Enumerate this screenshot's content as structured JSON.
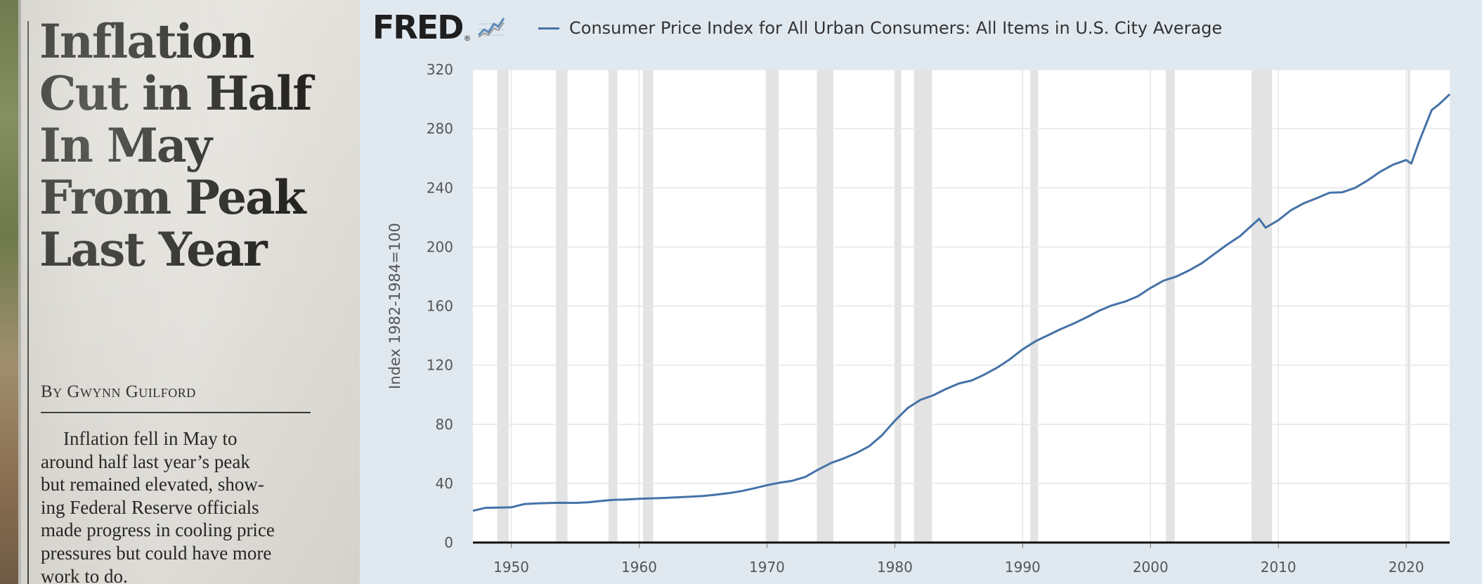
{
  "article": {
    "headline_lines": [
      "Inflation",
      "Cut in Half",
      "In May",
      "From Peak",
      "Last Year"
    ],
    "byline": "By Gwynn Guilford",
    "body_lines": [
      "Inflation fell in May to",
      "around half last year’s peak",
      "but remained elevated, show-",
      "ing Federal Reserve officials",
      "made progress in cooling price",
      "pressures but could have more",
      "work to do."
    ]
  },
  "fred": {
    "logo_text": "FRED",
    "logo_mark": "®",
    "logo_icon": "trend-graph-icon",
    "colors": {
      "line": "#4572a7",
      "recession": "#e3e3e3",
      "plot_bg": "#ffffff",
      "grid": "#e6e6e6",
      "baseline": "#111111"
    }
  },
  "chart_data": {
    "type": "line",
    "title": "",
    "xlabel": "",
    "ylabel": "Index 1982-1984=100",
    "ylim": [
      0,
      320
    ],
    "yticks": [
      0,
      40,
      80,
      120,
      160,
      200,
      240,
      280,
      320
    ],
    "xlim": [
      1947,
      2023.4
    ],
    "xticks": [
      1950,
      1960,
      1970,
      1980,
      1990,
      2000,
      2010,
      2020
    ],
    "grid": true,
    "legend_position": "top-left",
    "recessions": [
      [
        1948.9,
        1949.8
      ],
      [
        1953.5,
        1954.4
      ],
      [
        1957.6,
        1958.3
      ],
      [
        1960.3,
        1961.1
      ],
      [
        1969.9,
        1970.9
      ],
      [
        1973.9,
        1975.2
      ],
      [
        1980.0,
        1980.5
      ],
      [
        1981.5,
        1982.9
      ],
      [
        1990.6,
        1991.2
      ],
      [
        2001.2,
        2001.9
      ],
      [
        2007.9,
        2009.5
      ],
      [
        2020.1,
        2020.3
      ]
    ],
    "series": [
      {
        "name": "Consumer Price Index for All Urban Consumers: All Items in U.S. City Average",
        "x": [
          1947,
          1948,
          1949,
          1950,
          1951,
          1952,
          1953,
          1954,
          1955,
          1956,
          1957,
          1958,
          1959,
          1960,
          1961,
          1962,
          1963,
          1964,
          1965,
          1966,
          1967,
          1968,
          1969,
          1970,
          1971,
          1972,
          1973,
          1974,
          1975,
          1976,
          1977,
          1978,
          1979,
          1980,
          1981,
          1982,
          1983,
          1984,
          1985,
          1986,
          1987,
          1988,
          1989,
          1990,
          1991,
          1992,
          1993,
          1994,
          1995,
          1996,
          1997,
          1998,
          1999,
          2000,
          2001,
          2002,
          2003,
          2004,
          2005,
          2006,
          2007,
          2008.5,
          2009,
          2010,
          2011,
          2012,
          2013,
          2014,
          2015,
          2016,
          2017,
          2018,
          2019,
          2020,
          2020.4,
          2021,
          2022,
          2022.5,
          2023,
          2023.4
        ],
        "y": [
          21.5,
          23.5,
          23.7,
          23.8,
          26.0,
          26.5,
          26.7,
          26.9,
          26.8,
          27.2,
          28.1,
          28.9,
          29.1,
          29.6,
          29.9,
          30.2,
          30.6,
          31.0,
          31.5,
          32.4,
          33.4,
          34.8,
          36.7,
          38.8,
          40.5,
          41.8,
          44.4,
          49.3,
          53.8,
          56.9,
          60.6,
          65.2,
          72.6,
          82.4,
          90.9,
          96.5,
          99.6,
          103.9,
          107.6,
          109.6,
          113.6,
          118.3,
          124.0,
          130.7,
          136.2,
          140.3,
          144.5,
          148.2,
          152.4,
          156.9,
          160.5,
          163.0,
          166.6,
          172.2,
          177.1,
          179.9,
          184.0,
          188.9,
          195.3,
          201.6,
          207.3,
          219.0,
          213.0,
          218.1,
          224.9,
          229.6,
          233.0,
          236.7,
          237.0,
          240.0,
          245.1,
          251.1,
          255.7,
          258.8,
          256.4,
          271.0,
          292.7,
          296.0,
          300.0,
          303.3
        ]
      }
    ]
  }
}
